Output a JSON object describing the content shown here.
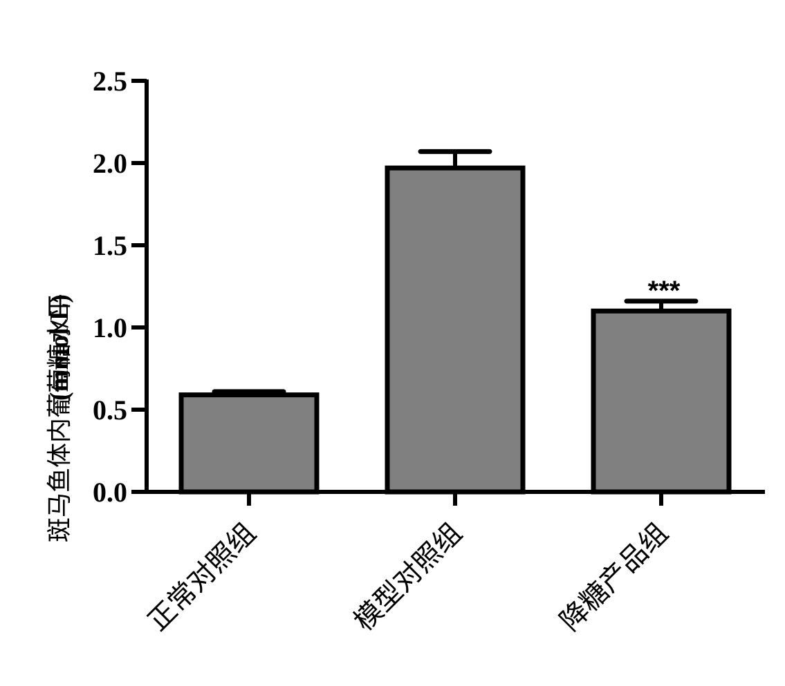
{
  "chart_data": {
    "type": "bar",
    "title": "",
    "xlabel": "",
    "ylabel": "斑马鱼体内葡萄糖水平",
    "ylabel_unit": "(mmol/L)",
    "ylim": [
      0,
      2.5
    ],
    "yticks": [
      "0.0",
      "0.5",
      "1.0",
      "1.5",
      "2.0",
      "2.5"
    ],
    "categories": [
      "正常对照组",
      "模型对照组",
      "降糖产品组"
    ],
    "values": [
      0.59,
      1.97,
      1.1
    ],
    "errors": [
      0.02,
      0.1,
      0.06
    ],
    "annotations": [
      "",
      "",
      "***"
    ],
    "bar_color": "#808080",
    "edge_color": "#000000",
    "grid": false,
    "legend": "none"
  }
}
